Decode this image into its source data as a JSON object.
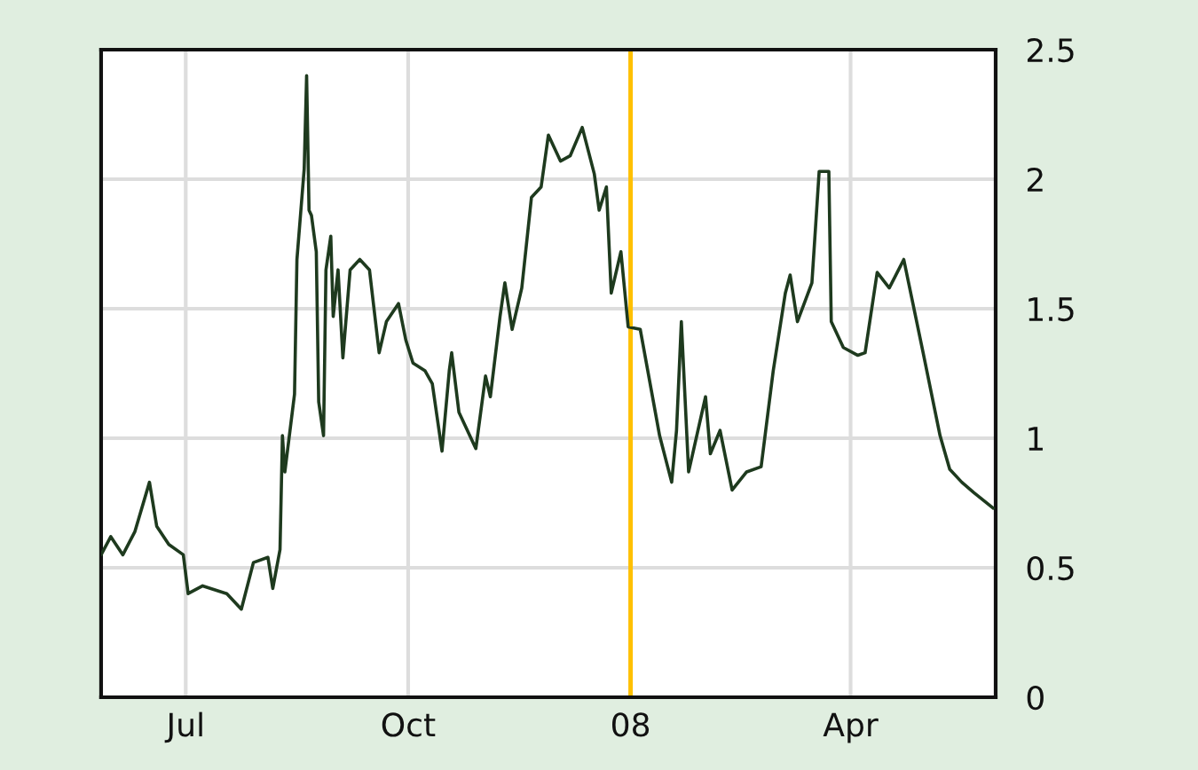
{
  "chart_data": {
    "type": "line",
    "x": [
      "2007-05-27",
      "2007-05-31",
      "2007-06-05",
      "2007-06-10",
      "2007-06-16",
      "2007-06-19",
      "2007-06-24",
      "2007-06-30",
      "2007-07-02",
      "2007-07-08",
      "2007-07-18",
      "2007-07-24",
      "2007-07-29",
      "2007-08-04",
      "2007-08-06",
      "2007-08-09",
      "2007-08-10",
      "2007-08-11",
      "2007-08-15",
      "2007-08-16",
      "2007-08-19",
      "2007-08-20",
      "2007-08-21",
      "2007-08-22",
      "2007-08-24",
      "2007-08-25",
      "2007-08-27",
      "2007-08-28",
      "2007-08-30",
      "2007-08-31",
      "2007-09-02",
      "2007-09-04",
      "2007-09-07",
      "2007-09-11",
      "2007-09-15",
      "2007-09-19",
      "2007-09-22",
      "2007-09-27",
      "2007-09-30",
      "2007-10-03",
      "2007-10-08",
      "2007-10-11",
      "2007-10-15",
      "2007-10-18",
      "2007-10-19",
      "2007-10-22",
      "2007-10-29",
      "2007-11-02",
      "2007-11-04",
      "2007-11-08",
      "2007-11-10",
      "2007-11-13",
      "2007-11-17",
      "2007-11-21",
      "2007-11-25",
      "2007-11-28",
      "2007-12-03",
      "2007-12-07",
      "2007-12-12",
      "2007-12-17",
      "2007-12-19",
      "2007-12-22",
      "2007-12-24",
      "2007-12-28",
      "2007-12-31",
      "2008-01-05",
      "2008-01-13",
      "2008-01-18",
      "2008-01-20",
      "2008-01-22",
      "2008-01-25",
      "2008-02-01",
      "2008-02-03",
      "2008-02-07",
      "2008-02-12",
      "2008-02-18",
      "2008-02-24",
      "2008-02-29",
      "2008-03-05",
      "2008-03-07",
      "2008-03-10",
      "2008-03-16",
      "2008-03-19",
      "2008-03-23",
      "2008-03-24",
      "2008-03-29",
      "2008-04-04",
      "2008-04-07",
      "2008-04-12",
      "2008-04-17",
      "2008-04-23",
      "2008-04-25",
      "2008-05-01",
      "2008-05-08",
      "2008-05-12",
      "2008-05-17",
      "2008-05-22",
      "2008-05-30"
    ],
    "series": [
      {
        "color": "#1e3a1e",
        "values": [
          0.55,
          0.62,
          0.55,
          0.64,
          0.83,
          0.66,
          0.59,
          0.55,
          0.4,
          0.43,
          0.4,
          0.34,
          0.52,
          0.54,
          0.42,
          0.57,
          1.01,
          0.87,
          1.17,
          1.69,
          2.04,
          2.4,
          1.88,
          1.86,
          1.72,
          1.14,
          1.01,
          1.65,
          1.78,
          1.47,
          1.65,
          1.31,
          1.65,
          1.69,
          1.65,
          1.33,
          1.45,
          1.52,
          1.38,
          1.29,
          1.26,
          1.21,
          0.95,
          1.26,
          1.33,
          1.1,
          0.96,
          1.24,
          1.16,
          1.47,
          1.6,
          1.42,
          1.58,
          1.93,
          1.97,
          2.17,
          2.07,
          2.09,
          2.2,
          2.02,
          1.88,
          1.97,
          1.56,
          1.72,
          1.43,
          1.42,
          1.01,
          0.83,
          1.03,
          1.45,
          0.87,
          1.16,
          0.94,
          1.03,
          0.8,
          0.87,
          0.89,
          1.26,
          1.56,
          1.63,
          1.45,
          1.6,
          2.03,
          2.03,
          1.45,
          1.35,
          1.32,
          1.33,
          1.64,
          1.58,
          1.69,
          1.6,
          1.33,
          1.01,
          0.88,
          0.83,
          0.79,
          0.73
        ]
      }
    ],
    "xlim": [
      "2007-05-27",
      "2008-05-31"
    ],
    "xticks": [
      {
        "value": "2007-07-01",
        "label": "Jul"
      },
      {
        "value": "2007-10-01",
        "label": "Oct"
      },
      {
        "value": "2008-01-01",
        "label": "08"
      },
      {
        "value": "2008-04-01",
        "label": "Apr"
      }
    ],
    "ylim": [
      0,
      2.5
    ],
    "yticks": [
      0,
      0.5,
      1,
      1.5,
      2,
      2.5
    ],
    "grid": true,
    "ref_lines": [
      {
        "axis": "x",
        "value": "2008-01-01",
        "color": "#ffc000"
      }
    ]
  }
}
